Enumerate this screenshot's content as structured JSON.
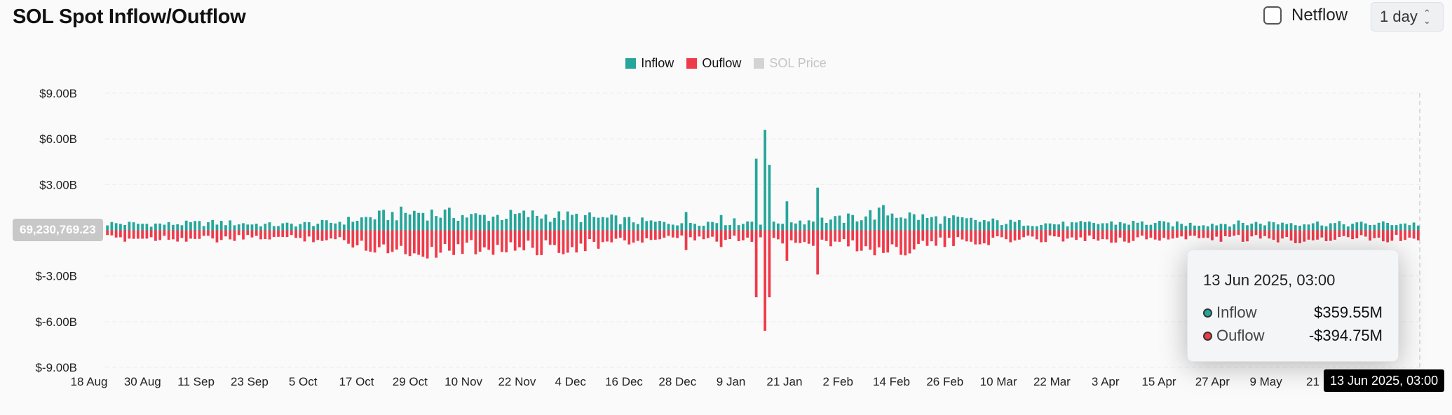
{
  "header": {
    "title": "SOL Spot Inflow/Outflow",
    "netflow_label": "Netflow",
    "interval_value": "1 day"
  },
  "legend": [
    {
      "label": "Inflow",
      "color": "#26a69a",
      "active": true
    },
    {
      "label": "Ouflow",
      "color": "#ef3a4a",
      "active": true
    },
    {
      "label": "SOL Price",
      "color": "#cfcfcf",
      "active": false
    }
  ],
  "chart_data": {
    "type": "bar",
    "title": "SOL Spot Inflow/Outflow",
    "x_start_date": "18 Aug 2024",
    "x_end_date": "13 Jun 2025",
    "x_tick_labels": [
      "18 Aug",
      "30 Aug",
      "11 Sep",
      "23 Sep",
      "5 Oct",
      "17 Oct",
      "29 Oct",
      "10 Nov",
      "22 Nov",
      "4 Dec",
      "16 Dec",
      "28 Dec",
      "9 Jan",
      "21 Jan",
      "2 Feb",
      "14 Feb",
      "26 Feb",
      "10 Mar",
      "22 Mar",
      "3 Apr",
      "15 Apr",
      "27 Apr",
      "9 May",
      "21 M"
    ],
    "y_tick_labels": [
      "$9.00B",
      "$6.00B",
      "$3.00B",
      "",
      "$-3.00B",
      "$-6.00B",
      "$-9.00B"
    ],
    "ylim": [
      -9,
      9
    ],
    "y_unit": "B USD",
    "inflow_keypoints": [
      [
        0,
        0.45
      ],
      [
        20,
        0.4
      ],
      [
        40,
        0.5
      ],
      [
        60,
        0.35
      ],
      [
        80,
        0.5
      ],
      [
        95,
        0.9
      ],
      [
        110,
        1.2
      ],
      [
        130,
        0.9
      ],
      [
        150,
        1.0
      ],
      [
        170,
        0.85
      ],
      [
        195,
        0.5
      ],
      [
        220,
        0.55
      ],
      [
        240,
        0.6
      ],
      [
        260,
        0.7
      ],
      [
        275,
        1.2
      ],
      [
        290,
        0.8
      ],
      [
        320,
        0.5
      ],
      [
        340,
        0.4
      ],
      [
        360,
        0.5
      ],
      [
        380,
        0.4
      ],
      [
        400,
        0.45
      ],
      [
        420,
        0.5
      ],
      [
        440,
        0.4
      ],
      [
        455,
        0.45
      ],
      [
        464,
        0.42
      ]
    ],
    "outflow_keypoints": [
      [
        0,
        0.55
      ],
      [
        20,
        0.5
      ],
      [
        40,
        0.6
      ],
      [
        60,
        0.45
      ],
      [
        80,
        0.6
      ],
      [
        95,
        1.1
      ],
      [
        110,
        1.4
      ],
      [
        130,
        1.1
      ],
      [
        150,
        1.2
      ],
      [
        170,
        1.0
      ],
      [
        195,
        0.55
      ],
      [
        220,
        0.6
      ],
      [
        240,
        0.7
      ],
      [
        260,
        0.8
      ],
      [
        275,
        1.4
      ],
      [
        290,
        0.9
      ],
      [
        320,
        0.6
      ],
      [
        340,
        0.5
      ],
      [
        360,
        0.6
      ],
      [
        380,
        0.5
      ],
      [
        400,
        0.55
      ],
      [
        420,
        0.6
      ],
      [
        440,
        0.5
      ],
      [
        455,
        0.55
      ],
      [
        464,
        0.52
      ]
    ],
    "spikes_inflow": [
      [
        230,
        4.7
      ],
      [
        232,
        6.6
      ],
      [
        234,
        4.3
      ],
      [
        252,
        2.8
      ],
      [
        240,
        1.9
      ],
      [
        205,
        1.2
      ],
      [
        218,
        1.0
      ]
    ],
    "spikes_outflow": [
      [
        230,
        -4.4
      ],
      [
        232,
        -6.6
      ],
      [
        234,
        -4.4
      ],
      [
        252,
        -2.9
      ],
      [
        240,
        -2.0
      ],
      [
        205,
        -1.3
      ],
      [
        218,
        -1.1
      ]
    ],
    "bar_count": 300
  },
  "tooltip": {
    "date": "13 Jun 2025, 03:00",
    "rows": [
      {
        "label": "Inflow",
        "value": "$359.55M",
        "color": "#26a69a"
      },
      {
        "label": "Ouflow",
        "value": "-$394.75M",
        "color": "#ef3a4a"
      }
    ]
  },
  "crosshair": {
    "y_value_label": "69,230,769.23",
    "x_value_label": "13 Jun 2025, 03:00"
  }
}
